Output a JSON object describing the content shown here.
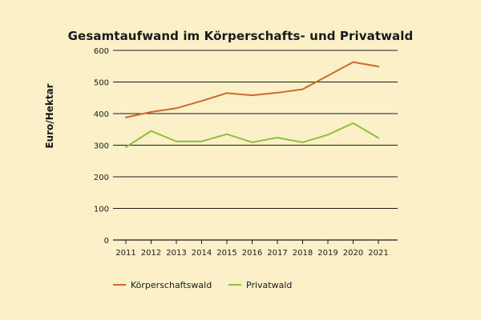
{
  "chart_data": {
    "type": "line",
    "title": "Gesamtaufwand im Körperschafts- und Privatwald",
    "xlabel": "",
    "ylabel": "Euro/Hektar",
    "x": [
      "2011",
      "2012",
      "2013",
      "2014",
      "2015",
      "2016",
      "2017",
      "2018",
      "2019",
      "2020",
      "2021"
    ],
    "ylim": [
      0,
      600
    ],
    "yticks": [
      0,
      100,
      200,
      300,
      400,
      500,
      600
    ],
    "grid": true,
    "legend_position": "bottom",
    "series": [
      {
        "name": "Körperschaftswald",
        "color": "#cc6a2c",
        "values": [
          388,
          405,
          417,
          440,
          465,
          458,
          466,
          477,
          520,
          563,
          549
        ]
      },
      {
        "name": "Privatwald",
        "color": "#8fbf3a",
        "values": [
          294,
          345,
          312,
          312,
          335,
          309,
          324,
          309,
          333,
          370,
          323
        ]
      }
    ]
  }
}
